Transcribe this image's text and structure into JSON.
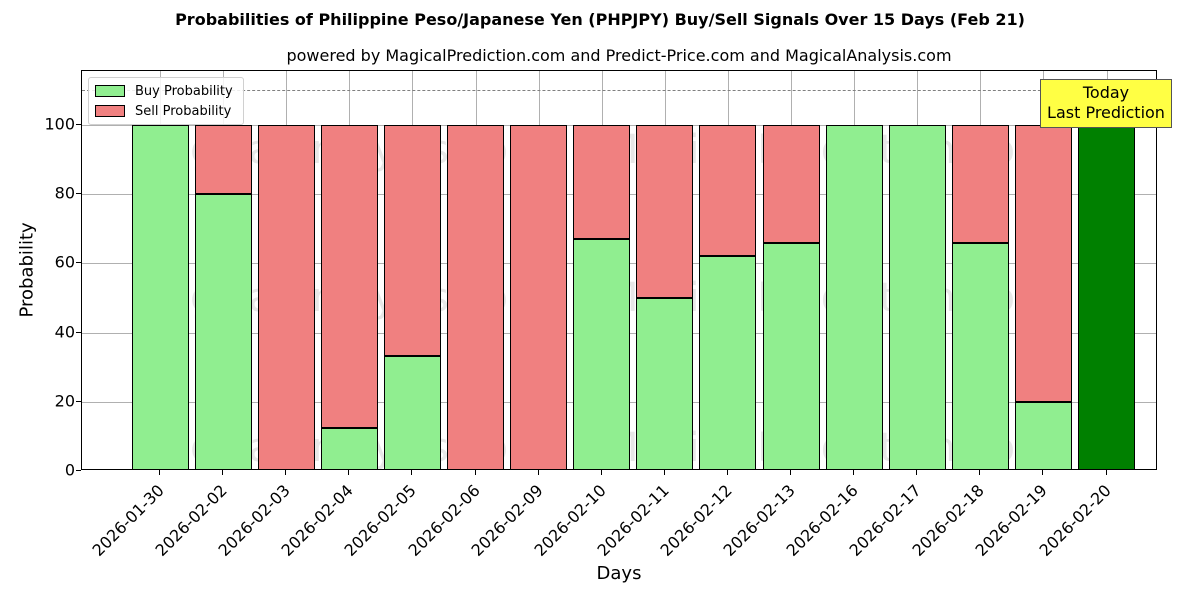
{
  "chart_data": {
    "type": "bar",
    "stacked": true,
    "title": "Probabilities of Philippine Peso/Japanese Yen (PHPJPY) Buy/Sell Signals Over 15 Days (Feb 21)",
    "subtitle": "powered by MagicalPrediction.com and Predict-Price.com and MagicalAnalysis.com",
    "xlabel": "Days",
    "ylabel": "Probability",
    "ylim": [
      0,
      115
    ],
    "yticks": [
      0,
      20,
      40,
      60,
      80,
      100
    ],
    "grid": true,
    "legend_position": "upper left",
    "categories": [
      "2026-01-30",
      "2026-02-02",
      "2026-02-03",
      "2026-02-04",
      "2026-02-05",
      "2026-02-06",
      "2026-02-09",
      "2026-02-10",
      "2026-02-11",
      "2026-02-12",
      "2026-02-13",
      "2026-02-16",
      "2026-02-17",
      "2026-02-18",
      "2026-02-19",
      "2026-02-20"
    ],
    "series": [
      {
        "name": "Buy Probability",
        "color": "#90ee90",
        "values": [
          100,
          80,
          0,
          12.5,
          33.3,
          0,
          0,
          67,
          50,
          62,
          66,
          100,
          100,
          66,
          20,
          100
        ]
      },
      {
        "name": "Sell Probability",
        "color": "#f08080",
        "values": [
          0,
          20,
          100,
          87.5,
          66.7,
          100,
          100,
          33,
          50,
          38,
          34,
          0,
          0,
          34,
          80,
          0
        ]
      }
    ],
    "highlight": {
      "category": "2026-02-20",
      "color": "#008000",
      "label": "Today\nLast Prediction"
    },
    "reference_line": {
      "y": 110,
      "style": "dashed",
      "color": "#808080"
    },
    "annotations": [
      "Today",
      "Last Prediction"
    ],
    "watermarks": [
      "MagicalAnalysis.com",
      "MagicalPrediction.com"
    ]
  },
  "labels": {
    "title": "Probabilities of Philippine Peso/Japanese Yen (PHPJPY) Buy/Sell Signals Over 15 Days (Feb 21)",
    "subtitle": "powered by MagicalPrediction.com and Predict-Price.com and MagicalAnalysis.com",
    "xlabel": "Days",
    "ylabel": "Probability",
    "legend_buy": "Buy Probability",
    "legend_sell": "Sell Probability",
    "today_line1": "Today",
    "today_line2": "Last Prediction",
    "watermark_left": "MagicalAnalysis.com",
    "watermark_right": "MagicalPrediction.com"
  }
}
